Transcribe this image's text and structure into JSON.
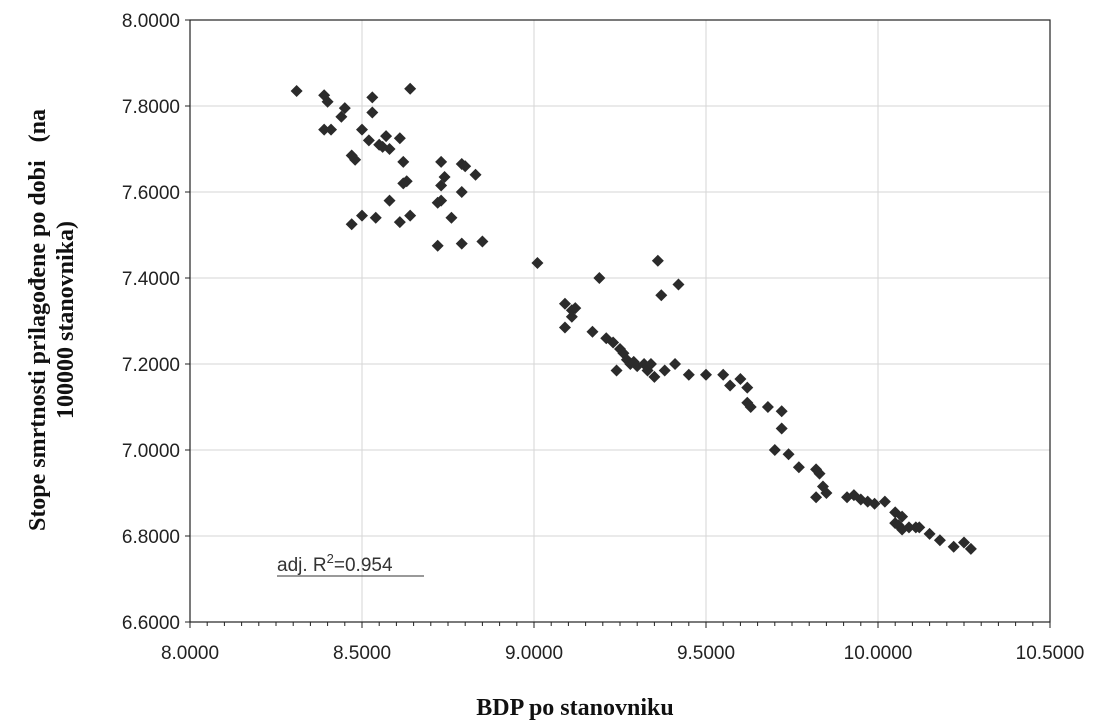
{
  "chart_data": {
    "type": "scatter",
    "xlabel": "BDP po stanovniku",
    "ylabel_lines": [
      "Stope smrtnosti prilagođene po dobi   (na",
      "100000 stanovnika)"
    ],
    "xlim": [
      8.0,
      10.5
    ],
    "ylim": [
      6.6,
      8.0
    ],
    "x_ticks": [
      "8.0000",
      "8.5000",
      "9.0000",
      "9.5000",
      "10.0000",
      "10.5000"
    ],
    "y_ticks": [
      "6.6000",
      "6.8000",
      "7.0000",
      "7.2000",
      "7.4000",
      "7.6000",
      "7.8000",
      "8.0000"
    ],
    "grid": true,
    "marker": "diamond",
    "marker_color": "#2b2b2b",
    "annotation": {
      "prefix": "adj. R",
      "sup": "2",
      "suffix": "=0.954"
    },
    "points": [
      [
        8.31,
        7.835
      ],
      [
        8.39,
        7.825
      ],
      [
        8.4,
        7.81
      ],
      [
        8.44,
        7.775
      ],
      [
        8.45,
        7.795
      ],
      [
        8.41,
        7.745
      ],
      [
        8.39,
        7.745
      ],
      [
        8.53,
        7.82
      ],
      [
        8.53,
        7.785
      ],
      [
        8.5,
        7.745
      ],
      [
        8.52,
        7.72
      ],
      [
        8.55,
        7.71
      ],
      [
        8.56,
        7.705
      ],
      [
        8.58,
        7.7
      ],
      [
        8.57,
        7.73
      ],
      [
        8.64,
        7.84
      ],
      [
        8.61,
        7.725
      ],
      [
        8.62,
        7.67
      ],
      [
        8.63,
        7.625
      ],
      [
        8.62,
        7.62
      ],
      [
        8.48,
        7.675
      ],
      [
        8.47,
        7.685
      ],
      [
        8.5,
        7.545
      ],
      [
        8.54,
        7.54
      ],
      [
        8.47,
        7.525
      ],
      [
        8.58,
        7.58
      ],
      [
        8.61,
        7.53
      ],
      [
        8.64,
        7.545
      ],
      [
        8.73,
        7.67
      ],
      [
        8.74,
        7.635
      ],
      [
        8.73,
        7.615
      ],
      [
        8.73,
        7.58
      ],
      [
        8.72,
        7.575
      ],
      [
        8.76,
        7.54
      ],
      [
        8.72,
        7.475
      ],
      [
        8.79,
        7.665
      ],
      [
        8.8,
        7.66
      ],
      [
        8.79,
        7.6
      ],
      [
        8.83,
        7.64
      ],
      [
        8.79,
        7.48
      ],
      [
        8.85,
        7.485
      ],
      [
        9.01,
        7.435
      ],
      [
        9.09,
        7.34
      ],
      [
        9.11,
        7.325
      ],
      [
        9.12,
        7.33
      ],
      [
        9.11,
        7.31
      ],
      [
        9.09,
        7.285
      ],
      [
        9.19,
        7.4
      ],
      [
        9.17,
        7.275
      ],
      [
        9.36,
        7.44
      ],
      [
        9.42,
        7.385
      ],
      [
        9.37,
        7.36
      ],
      [
        9.21,
        7.26
      ],
      [
        9.23,
        7.25
      ],
      [
        9.25,
        7.235
      ],
      [
        9.26,
        7.225
      ],
      [
        9.27,
        7.21
      ],
      [
        9.24,
        7.185
      ],
      [
        9.28,
        7.2
      ],
      [
        9.29,
        7.205
      ],
      [
        9.3,
        7.195
      ],
      [
        9.32,
        7.2
      ],
      [
        9.33,
        7.185
      ],
      [
        9.34,
        7.2
      ],
      [
        9.35,
        7.17
      ],
      [
        9.38,
        7.185
      ],
      [
        9.41,
        7.2
      ],
      [
        9.45,
        7.175
      ],
      [
        9.5,
        7.175
      ],
      [
        9.55,
        7.175
      ],
      [
        9.57,
        7.15
      ],
      [
        9.6,
        7.165
      ],
      [
        9.62,
        7.145
      ],
      [
        9.62,
        7.11
      ],
      [
        9.63,
        7.1
      ],
      [
        9.68,
        7.1
      ],
      [
        9.72,
        7.09
      ],
      [
        9.72,
        7.05
      ],
      [
        9.7,
        7.0
      ],
      [
        9.74,
        6.99
      ],
      [
        9.77,
        6.96
      ],
      [
        9.82,
        6.955
      ],
      [
        9.83,
        6.945
      ],
      [
        9.84,
        6.915
      ],
      [
        9.85,
        6.9
      ],
      [
        9.82,
        6.89
      ],
      [
        9.91,
        6.89
      ],
      [
        9.93,
        6.895
      ],
      [
        9.95,
        6.885
      ],
      [
        9.97,
        6.88
      ],
      [
        9.99,
        6.875
      ],
      [
        10.02,
        6.88
      ],
      [
        10.05,
        6.855
      ],
      [
        10.07,
        6.845
      ],
      [
        10.05,
        6.83
      ],
      [
        10.06,
        6.825
      ],
      [
        10.07,
        6.815
      ],
      [
        10.09,
        6.82
      ],
      [
        10.11,
        6.82
      ],
      [
        10.12,
        6.82
      ],
      [
        10.15,
        6.805
      ],
      [
        10.18,
        6.79
      ],
      [
        10.22,
        6.775
      ],
      [
        10.25,
        6.785
      ],
      [
        10.27,
        6.77
      ]
    ]
  }
}
